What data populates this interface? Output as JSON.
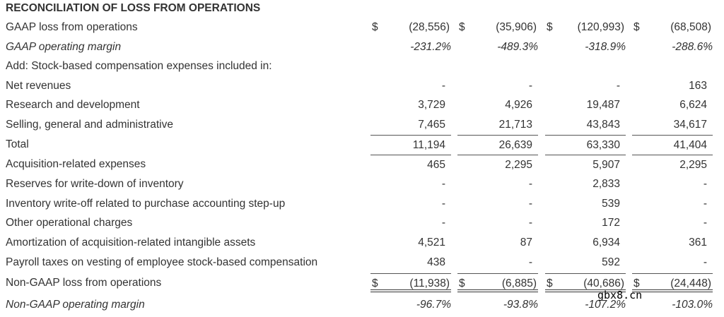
{
  "title": "RECONCILIATION OF LOSS FROM OPERATIONS",
  "currency_symbol": "$",
  "rows": [
    {
      "label": "GAAP loss from operations",
      "values": [
        "(28,556)",
        "(35,906)",
        "(120,993)",
        "(68,508)"
      ],
      "dollar": true
    },
    {
      "label": "GAAP operating margin",
      "values": [
        "-231.2%",
        "-489.3%",
        "-318.9%",
        "-288.6%"
      ],
      "italic": true
    },
    {
      "label": "Add: Stock-based compensation expenses included in:",
      "values": []
    },
    {
      "label": "Net revenues",
      "values": [
        "-",
        "-",
        "-",
        "163"
      ]
    },
    {
      "label": "Research and development",
      "values": [
        "3,729",
        "4,926",
        "19,487",
        "6,624"
      ]
    },
    {
      "label": "Selling, general and administrative",
      "values": [
        "7,465",
        "21,713",
        "43,843",
        "34,617"
      ]
    },
    {
      "label": "Total",
      "values": [
        "11,194",
        "26,639",
        "63,330",
        "41,404"
      ],
      "border_top": true
    },
    {
      "label": "Acquisition-related expenses",
      "values": [
        "465",
        "2,295",
        "5,907",
        "2,295"
      ],
      "border_top": true
    },
    {
      "label": "Reserves for write-down of inventory",
      "values": [
        "-",
        "-",
        "2,833",
        "-"
      ]
    },
    {
      "label": "Inventory write-off related to purchase accounting step-up",
      "values": [
        "-",
        "-",
        "539",
        "-"
      ]
    },
    {
      "label": "Other operational charges",
      "values": [
        "-",
        "-",
        "172",
        "-"
      ]
    },
    {
      "label": "Amortization of acquisition-related intangible assets",
      "values": [
        "4,521",
        "87",
        "6,934",
        "361"
      ]
    },
    {
      "label": "Payroll taxes on vesting of employee stock-based compensation",
      "values": [
        "438",
        "-",
        "592",
        "-"
      ]
    },
    {
      "label": "Non-GAAP loss from operations",
      "values": [
        "(11,938)",
        "(6,885)",
        "(40,686)",
        "(24,448)"
      ],
      "dollar": true,
      "border_top": true,
      "double_bottom": true
    },
    {
      "label": "Non-GAAP operating margin",
      "values": [
        "-96.7%",
        "-93.8%",
        "-107.2%",
        "-103.0%"
      ],
      "italic": true
    }
  ],
  "watermark": "gbx8.cn"
}
